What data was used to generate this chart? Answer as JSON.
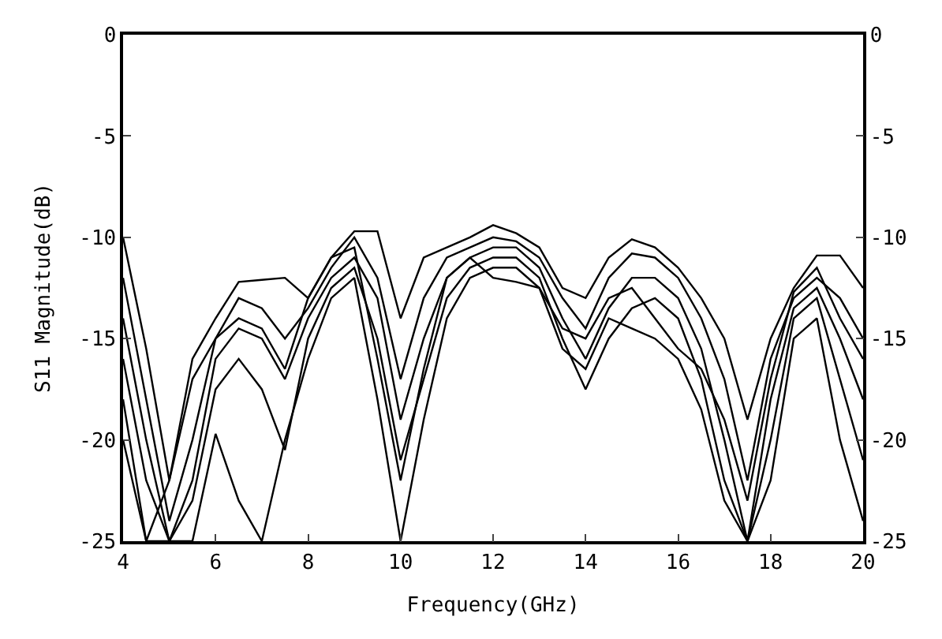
{
  "chart_data": {
    "type": "line",
    "xlabel": "Frequency(GHz)",
    "ylabel": "S11 Magnitude(dB)",
    "x": [
      4,
      4.5,
      5,
      5.5,
      6,
      6.5,
      7,
      7.5,
      8,
      8.5,
      9,
      9.5,
      10,
      10.5,
      11,
      11.5,
      12,
      12.5,
      13,
      13.5,
      14,
      14.5,
      15,
      15.5,
      16,
      16.5,
      17,
      17.5,
      18,
      18.5,
      19,
      19.5,
      20
    ],
    "series": [
      {
        "color": "#000000",
        "values": [
          -10,
          -15.5,
          -22,
          -16,
          -14,
          -12.2,
          -12.1,
          -12,
          -13,
          -11,
          -9.7,
          -9.7,
          -14,
          -11,
          -10.5,
          -10,
          -9.4,
          -9.8,
          -10.5,
          -12.5,
          -13,
          -11,
          -10.1,
          -10.5,
          -11.5,
          -13,
          -15,
          -19,
          -15,
          -12.5,
          -10.9,
          -10.9,
          -12.5
        ]
      },
      {
        "color": "#000000",
        "values": [
          -12,
          -18,
          -24,
          -20,
          -15,
          -13,
          -13.5,
          -15,
          -13.5,
          -11.5,
          -10,
          -12,
          -17,
          -13,
          -11,
          -10.5,
          -10,
          -10.2,
          -11,
          -13,
          -14.5,
          -12,
          -10.8,
          -11,
          -12,
          -14,
          -17,
          -22,
          -16,
          -13,
          -12,
          -13,
          -15
        ]
      },
      {
        "color": "#000000",
        "values": [
          -14,
          -20,
          -25,
          -22,
          -16,
          -14.5,
          -15,
          -17,
          -14,
          -12,
          -11,
          -13,
          -19,
          -15,
          -12,
          -11,
          -10.5,
          -10.5,
          -11.5,
          -14,
          -16,
          -13.5,
          -12,
          -12,
          -13,
          -15.5,
          -20,
          -25,
          -18,
          -13.5,
          -12.5,
          -15,
          -18
        ]
      },
      {
        "color": "#000000",
        "values": [
          -16,
          -22,
          -25,
          -23,
          -17.5,
          -16,
          -17.5,
          -20.5,
          -15,
          -12.5,
          -11.5,
          -15,
          -21,
          -17,
          -13,
          -11.5,
          -11,
          -11,
          -12,
          -15,
          -17.5,
          -15,
          -13.5,
          -13,
          -14,
          -17,
          -22,
          -25,
          -20,
          -14,
          -13,
          -17,
          -21
        ]
      },
      {
        "color": "#000000",
        "values": [
          -18,
          -25,
          -25,
          -25,
          -19.7,
          -23,
          -25,
          -20,
          -16,
          -13,
          -12,
          -18,
          -25,
          -19,
          -14,
          -12,
          -11.5,
          -11.5,
          -12.5,
          -15.5,
          -16.5,
          -14,
          -14.5,
          -15,
          -16,
          -18.5,
          -23,
          -25,
          -22,
          -15,
          -14,
          -20,
          -24
        ]
      },
      {
        "color": "#000000",
        "values": [
          -20,
          -25,
          -22,
          -17,
          -15,
          -14,
          -14.5,
          -16.5,
          -13,
          -11,
          -10.5,
          -16,
          -22,
          -16.5,
          -12,
          -11,
          -12,
          -12.2,
          -12.5,
          -14.5,
          -15,
          -13,
          -12.5,
          -14,
          -15.5,
          -16.5,
          -19,
          -23,
          -17,
          -12.7,
          -11.5,
          -14,
          -16
        ]
      }
    ],
    "xlim": [
      4,
      20
    ],
    "xticks": [
      4,
      6,
      8,
      10,
      12,
      14,
      16,
      18,
      20
    ],
    "ylim": [
      -25,
      0
    ],
    "yticks": [
      -25,
      -20,
      -15,
      -10,
      -5,
      0
    ],
    "y2lim": [
      -25,
      0
    ],
    "y2ticks": [
      -25,
      -20,
      -15,
      -10,
      -5,
      0
    ],
    "marker": "none",
    "line_style": "solid"
  }
}
